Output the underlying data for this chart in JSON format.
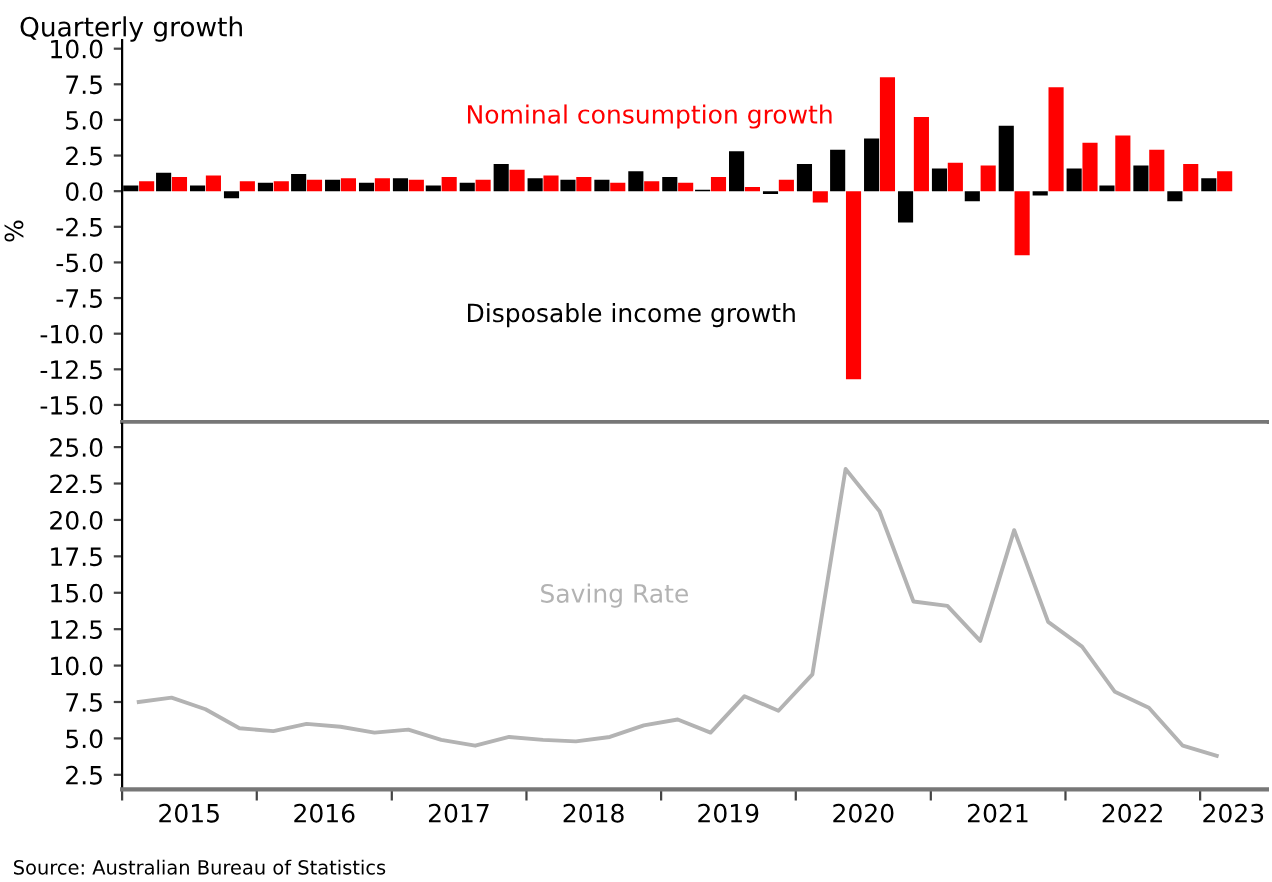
{
  "chart_data": [
    {
      "type": "bar",
      "title": "Quarterly growth",
      "ylabel": "%",
      "x": [
        "2015-02-15",
        "2015-05-15",
        "2015-08-15",
        "2015-11-15",
        "2016-02-15",
        "2016-05-15",
        "2016-08-15",
        "2016-11-15",
        "2017-02-15",
        "2017-05-15",
        "2017-08-15",
        "2017-11-15",
        "2018-02-15",
        "2018-05-15",
        "2018-08-15",
        "2018-11-15",
        "2019-02-15",
        "2019-05-15",
        "2019-08-15",
        "2019-11-15",
        "2020-02-15",
        "2020-05-15",
        "2020-08-15",
        "2020-11-15",
        "2021-02-15",
        "2021-05-15",
        "2021-08-15",
        "2021-11-15",
        "2022-02-15",
        "2022-05-15",
        "2022-08-15",
        "2022-11-15",
        "2023-02-15"
      ],
      "series": [
        {
          "name": "Disposable income growth",
          "color": "#000000",
          "values": [
            0.4,
            1.3,
            0.4,
            -0.5,
            0.6,
            1.2,
            0.8,
            0.6,
            0.9,
            0.4,
            0.6,
            1.9,
            0.9,
            0.8,
            0.8,
            1.4,
            1.0,
            0.1,
            2.8,
            -0.2,
            1.9,
            2.9,
            3.7,
            -2.2,
            1.6,
            -0.7,
            4.6,
            -0.3,
            1.6,
            0.4,
            1.8,
            -0.7,
            0.9
          ]
        },
        {
          "name": "Nominal consumption growth",
          "color": "#ff0000",
          "values": [
            0.7,
            1.0,
            1.1,
            0.7,
            0.7,
            0.8,
            0.9,
            0.9,
            0.8,
            1.0,
            0.8,
            1.5,
            1.1,
            1.0,
            0.6,
            0.7,
            0.6,
            1.0,
            0.3,
            0.8,
            -0.8,
            -13.2,
            8.0,
            5.2,
            2.0,
            1.8,
            -4.5,
            7.3,
            3.4,
            3.9,
            2.9,
            1.9,
            1.4
          ]
        }
      ],
      "xlim": [
        "2015-01-01",
        "2023-07-01"
      ],
      "ylim": [
        -16.2,
        10.6
      ],
      "yticks": [
        {
          "value": 10,
          "label": "10.0"
        },
        {
          "value": 7.5,
          "label": "7.5"
        },
        {
          "value": 5,
          "label": "5.0"
        },
        {
          "value": 2.5,
          "label": "2.5"
        },
        {
          "value": 0,
          "label": "0.0"
        },
        {
          "value": -2.5,
          "label": "-2.5"
        },
        {
          "value": -5,
          "label": "-5.0"
        },
        {
          "value": -7.5,
          "label": "-7.5"
        },
        {
          "value": -10,
          "label": "-10.0"
        },
        {
          "value": -12.5,
          "label": "-12.5"
        },
        {
          "value": -15,
          "label": "-15.0"
        }
      ],
      "tick_labels": "y"
    },
    {
      "type": "line",
      "x": [
        "2015-02-15",
        "2015-05-15",
        "2015-08-15",
        "2015-11-15",
        "2016-02-15",
        "2016-05-15",
        "2016-08-15",
        "2016-11-15",
        "2017-02-15",
        "2017-05-15",
        "2017-08-15",
        "2017-11-15",
        "2018-02-15",
        "2018-05-15",
        "2018-08-15",
        "2018-11-15",
        "2019-02-15",
        "2019-05-15",
        "2019-08-15",
        "2019-11-15",
        "2020-02-15",
        "2020-05-15",
        "2020-08-15",
        "2020-11-15",
        "2021-02-15",
        "2021-05-15",
        "2021-08-15",
        "2021-11-15",
        "2022-02-15",
        "2022-05-15",
        "2022-08-15",
        "2022-11-15",
        "2023-02-15"
      ],
      "series": [
        {
          "name": "Saving Rate",
          "color": "#b3b3b3",
          "values": [
            7.5,
            7.8,
            7.0,
            5.7,
            5.5,
            6.0,
            5.8,
            5.4,
            5.6,
            4.9,
            4.5,
            5.1,
            4.9,
            4.8,
            5.1,
            5.9,
            6.3,
            5.4,
            7.9,
            6.9,
            9.4,
            23.5,
            20.6,
            14.4,
            14.1,
            11.7,
            19.3,
            13.0,
            11.3,
            8.2,
            7.1,
            4.5,
            3.8
          ]
        }
      ],
      "xlim": [
        "2015-01-01",
        "2023-07-01"
      ],
      "ylim": [
        1.5,
        26.6
      ],
      "yticks": [
        {
          "value": 25,
          "label": "25.0"
        },
        {
          "value": 22.5,
          "label": "22.5"
        },
        {
          "value": 20,
          "label": "20.0"
        },
        {
          "value": 17.5,
          "label": "17.5"
        },
        {
          "value": 15,
          "label": "15.0"
        },
        {
          "value": 12.5,
          "label": "12.5"
        },
        {
          "value": 10,
          "label": "10.0"
        },
        {
          "value": 7.5,
          "label": "7.5"
        },
        {
          "value": 5,
          "label": "5.0"
        },
        {
          "value": 2.5,
          "label": "2.5"
        }
      ],
      "xticks": [
        {
          "value": "2015-01-01",
          "label": null
        },
        {
          "value": "2015-07-02",
          "label": "2015"
        },
        {
          "value": "2016-01-01",
          "label": null
        },
        {
          "value": "2016-07-02",
          "label": "2016"
        },
        {
          "value": "2017-01-01",
          "label": null
        },
        {
          "value": "2017-07-02",
          "label": "2017"
        },
        {
          "value": "2018-01-01",
          "label": null
        },
        {
          "value": "2018-07-02",
          "label": "2018"
        },
        {
          "value": "2019-01-01",
          "label": null
        },
        {
          "value": "2019-07-02",
          "label": "2019"
        },
        {
          "value": "2020-01-01",
          "label": null
        },
        {
          "value": "2020-07-02",
          "label": "2020"
        },
        {
          "value": "2021-01-01",
          "label": null
        },
        {
          "value": "2021-07-02",
          "label": "2021"
        },
        {
          "value": "2022-01-01",
          "label": null
        },
        {
          "value": "2022-07-02",
          "label": "2022"
        },
        {
          "value": "2023-01-01",
          "label": null
        },
        {
          "value": "2023-04-01",
          "label": "2023"
        }
      ],
      "annotations": [
        "Source: Australian Bureau of Statistics"
      ]
    }
  ]
}
